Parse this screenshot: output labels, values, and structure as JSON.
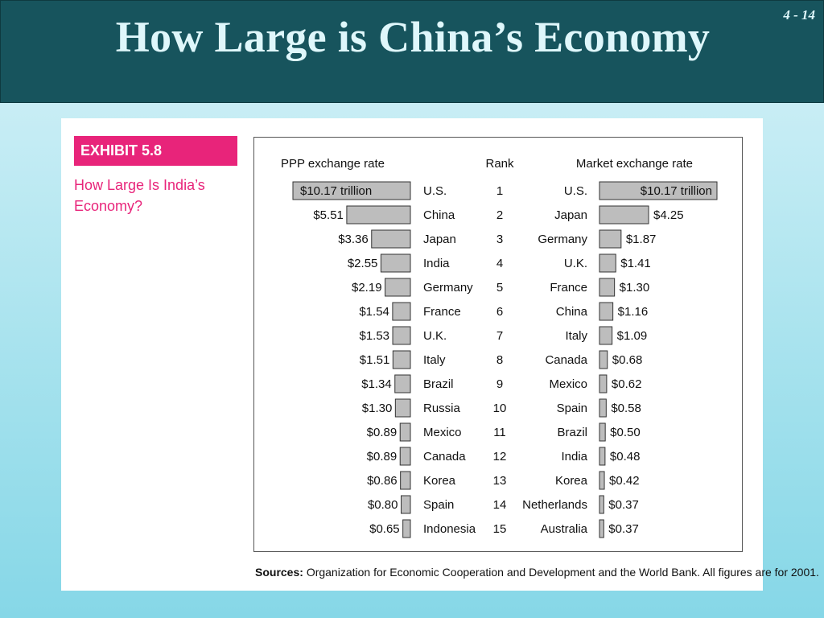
{
  "slide": {
    "title": "How Large is China’s Economy",
    "number": "4 - 14"
  },
  "exhibit": {
    "tag": "EXHIBIT 5.8",
    "caption": "How Large Is India’s Economy?",
    "sources_label": "Sources:",
    "sources_text": "Organization for Economic Cooperation and Development and the World Bank. All figures are for 2001."
  },
  "colors": {
    "header": "#17545d",
    "accent": "#e8247a",
    "bar_fill": "#bdbdbd",
    "bar_stroke": "#333333"
  },
  "chart_data": {
    "type": "bar",
    "ppp_header": "PPP exchange rate",
    "rank_header": "Rank",
    "market_header": "Market exchange rate",
    "unit_first": "trillion",
    "ranks": [
      1,
      2,
      3,
      4,
      5,
      6,
      7,
      8,
      9,
      10,
      11,
      12,
      13,
      14,
      15
    ],
    "ppp": {
      "countries": [
        "U.S.",
        "China",
        "Japan",
        "India",
        "Germany",
        "France",
        "U.K.",
        "Italy",
        "Brazil",
        "Russia",
        "Mexico",
        "Canada",
        "Korea",
        "Spain",
        "Indonesia"
      ],
      "values": [
        10.17,
        5.51,
        3.36,
        2.55,
        2.19,
        1.54,
        1.53,
        1.51,
        1.34,
        1.3,
        0.89,
        0.89,
        0.86,
        0.8,
        0.65
      ],
      "labels": [
        "$10.17 trillion",
        "$5.51",
        "$3.36",
        "$2.55",
        "$2.19",
        "$1.54",
        "$1.53",
        "$1.51",
        "$1.34",
        "$1.30",
        "$0.89",
        "$0.89",
        "$0.86",
        "$0.80",
        "$0.65"
      ]
    },
    "market": {
      "countries": [
        "U.S.",
        "Japan",
        "Germany",
        "U.K.",
        "France",
        "China",
        "Italy",
        "Canada",
        "Mexico",
        "Spain",
        "Brazil",
        "India",
        "Korea",
        "Netherlands",
        "Australia"
      ],
      "values": [
        10.17,
        4.25,
        1.87,
        1.41,
        1.3,
        1.16,
        1.09,
        0.68,
        0.62,
        0.58,
        0.5,
        0.48,
        0.42,
        0.37,
        0.37
      ],
      "labels": [
        "$10.17 trillion",
        "$4.25",
        "$1.87",
        "$1.41",
        "$1.30",
        "$1.16",
        "$1.09",
        "$0.68",
        "$0.62",
        "$0.58",
        "$0.50",
        "$0.48",
        "$0.42",
        "$0.37",
        "$0.37"
      ]
    }
  }
}
